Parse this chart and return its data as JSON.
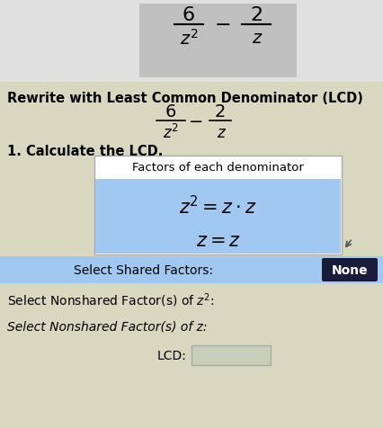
{
  "bg_top": "#e8e8e8",
  "bg_top_inner": "#c8c8c8",
  "bg_main": "#d8d8c0",
  "title": "Rewrite with Least Common Denominator (LCD)",
  "title_fontsize": 10.5,
  "section1_label": "1. Calculate the LCD.",
  "box_title": "Factors of each denominator",
  "box_bg": "#a0c8f0",
  "box_border": "#888888",
  "shared_label": "Select Shared Factors:",
  "shared_bg": "#a0c8f0",
  "none_btn_text": "None",
  "none_btn_bg": "#1a1a3a",
  "none_btn_fg": "#ffffff",
  "nonshared1_label": "Select Nonshared Factor(s) of ",
  "nonshared2_label": "Select Nonshared Factor(s) of z:",
  "lcd_label": "LCD:",
  "lcd_box_bg": "#c8ceb8",
  "fig_bg": "#d8d8c0",
  "top_bg": "#e0e0e0",
  "top_inner_bg": "#c0c0c0"
}
